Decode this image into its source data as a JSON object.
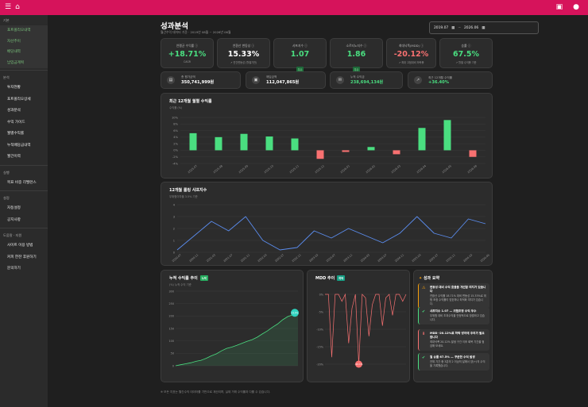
{
  "topbar": {
    "menu_icon": "menu-icon",
    "home_icon": "home-icon",
    "right_icon": "camera-icon"
  },
  "sidebar": {
    "sections": [
      {
        "label": "기본",
        "items": [],
        "subitems": [
          "포트폴리오내역",
          "자산추이",
          "배당내역",
          "납입금계획"
        ]
      },
      {
        "label": "분석",
        "items": [
          "투자현황",
          "포트폴리오상세",
          "성과분석",
          "수익 가이드",
          "월별수익률",
          "누적배당금내역",
          "월간이력"
        ]
      },
      {
        "label": "실행",
        "items": [
          "목표 비중 리밸런스"
        ]
      },
      {
        "label": "설정",
        "items": [
          "자동설정",
          "공지사항"
        ]
      },
      {
        "label": "도움말 · 지원",
        "items": [
          "사이트 이용 방법",
          "커피 한잔 후원하기",
          "문의하기"
        ]
      }
    ]
  },
  "header": {
    "title": "성과분석",
    "subtitle": "월간수익 데이터 기준 · 2019년 08월 ~ 2026년 06월",
    "date_from": "2019.07",
    "date_to": "2026.06"
  },
  "kpis": [
    {
      "title": "연평균 수익률 ⓘ",
      "value": "+18.71%",
      "sub": "CAGR",
      "color": "#4ade80"
    },
    {
      "title": "연환산 변동성 ⓘ",
      "value": "15.33%",
      "sub": "↗ 연간변동성 (월별기반)",
      "color": "#ffffff"
    },
    {
      "title": "샤프지수 ⓘ",
      "value": "1.07",
      "badge": "우수",
      "sub": "↗ 위험대비 수익률 (> 0.5 기준)",
      "color": "#4ade80"
    },
    {
      "title": "소르티노지수 ⓘ",
      "value": "1.86",
      "badge": "우수",
      "sub": "↗ 하방위험 대비",
      "color": "#4ade80"
    },
    {
      "title": "최대낙폭(MDD) ⓘ",
      "value": "-20.12%",
      "sub": "↗ 최대 고점대비 하락률",
      "color": "#f87171"
    },
    {
      "title": "승률 ⓘ",
      "value": "67.5%",
      "sub": "↗ 월별 수익률 기준",
      "color": "#4ade80"
    }
  ],
  "stats": [
    {
      "icon": "wallet-icon",
      "label": "총 평가금액",
      "value": "350,741,999원",
      "color": "#ffffff"
    },
    {
      "icon": "money-icon",
      "label": "매입금액",
      "value": "112,047,865원",
      "color": "#ffffff"
    },
    {
      "icon": "chat-icon",
      "label": "누적 수익금",
      "value": "238,694,134원",
      "color": "#4ade80"
    },
    {
      "icon": "trend-icon",
      "label": "최근 12개월 수익률",
      "value": "+36.40%",
      "color": "#4ade80"
    }
  ],
  "monthly": {
    "title": "최근 12개월 월별 수익률",
    "sub": "수익률 (%)"
  },
  "sharpe": {
    "title": "12개월 롤링 샤프지수",
    "sub": "무위험이자율 3.5% 기준"
  },
  "cum": {
    "title": "누적 수익률 추이",
    "badge": "누적",
    "sub": "(%) 누적 수익 기준"
  },
  "mdd": {
    "title": "MDD 추이",
    "badge": "하락"
  },
  "insights": {
    "title": "성과 요약",
    "title_icon": "bulb-icon",
    "items": [
      {
        "icon": "warning-icon",
        "color": "#f59e0b",
        "title": "변동성 대비 수익 효율을 개선할 여지가 있습니다",
        "text": "연환산 수익률 18.71% 대비 변동성 15.33%로 위험 조정 수익률이 양호하나 최적화 여지가 있습니다."
      },
      {
        "icon": "check-icon",
        "color": "#4ade80",
        "title": "샤프지수 1.07 — 위험조정 수익 우수",
        "text": "무위험 대비 초과수익을 안정적으로 창출하고 있습니다."
      },
      {
        "icon": "down-icon",
        "color": "#f87171",
        "title": "MDD -20.12%로 하락 방어에 주의가 필요합니다",
        "text": "최대낙폭 20.12% 발생 구간 이후 회복 기간을 점검해 보세요."
      },
      {
        "icon": "check-icon",
        "color": "#4ade80",
        "title": "월 승률 67.5% — 꾸준한 수익 발생",
        "text": "전체 기간 중 3분의 2 이상의 달에서 양(+)의 수익을 기록했습니다."
      }
    ]
  },
  "footnote": "※ 모든 지표는 월간수익 데이터를 기반으로 계산되며, 실제 거래 수익률과 다를 수 있습니다.",
  "chart_data": [
    {
      "type": "bar",
      "title": "최근 12개월 월별 수익률",
      "ylabel": "수익률 (%)",
      "categories": [
        "2025.07",
        "2025.08",
        "2025.09",
        "2025.10",
        "2025.11",
        "2025.12",
        "2026.01",
        "2026.02",
        "2026.03",
        "2026.04",
        "2026.05",
        "2026.06"
      ],
      "values": [
        5.2,
        4.0,
        5.0,
        4.2,
        3.6,
        -2.6,
        -0.5,
        1.0,
        -1.2,
        6.8,
        9.2,
        -2.0
      ],
      "yticks": [
        "-4%",
        "-2%",
        "0%",
        "2%",
        "4%",
        "6%",
        "8%",
        "10%"
      ],
      "ylim": [
        -4,
        10
      ],
      "colors": {
        "positive": "#4ade80",
        "negative": "#f87171"
      }
    },
    {
      "type": "line",
      "title": "12개월 롤링 샤프지수",
      "x": [
        "2020.07",
        "2020.11",
        "2021.03",
        "2021.07",
        "2021.11",
        "2022.03",
        "2022.07",
        "2022.11",
        "2023.03",
        "2023.07",
        "2023.11",
        "2024.03",
        "2024.07",
        "2024.11",
        "2025.03",
        "2025.07",
        "2025.11",
        "2026.03",
        "2026.06"
      ],
      "values": [
        0.2,
        1.4,
        2.6,
        1.8,
        3.0,
        1.0,
        0.2,
        0.4,
        1.8,
        1.2,
        2.0,
        1.4,
        0.8,
        1.6,
        3.0,
        1.6,
        1.2,
        2.8,
        2.4
      ],
      "yticks": [
        "0",
        "1",
        "2",
        "3",
        "4"
      ],
      "ylim": [
        0,
        4
      ],
      "color": "#5b8def"
    },
    {
      "type": "area",
      "title": "누적 수익률 추이",
      "values": [
        0,
        4,
        8,
        12,
        18,
        22,
        30,
        40,
        48,
        60,
        70,
        75,
        82,
        90,
        98,
        105,
        115,
        128,
        140,
        155,
        168,
        185,
        198,
        205,
        213
      ],
      "yticks": [
        "0",
        "50",
        "100",
        "150",
        "200",
        "250",
        "300"
      ],
      "ylim": [
        0,
        300
      ],
      "color": "#4ade80",
      "end_label": "213%"
    },
    {
      "type": "line",
      "title": "MDD 추이",
      "values": [
        0,
        0,
        -18,
        0,
        0,
        -2,
        0,
        -14,
        -4,
        0,
        -20,
        0,
        -1,
        -12,
        -3,
        0,
        0,
        -9,
        -1,
        0,
        -6,
        0,
        0,
        -2,
        0
      ],
      "yticks": [
        "0%",
        "-5%",
        "-10%",
        "-15%",
        "-20%"
      ],
      "ylim": [
        -20,
        0
      ],
      "color": "#f87171",
      "min_label": "-20.1%"
    }
  ]
}
